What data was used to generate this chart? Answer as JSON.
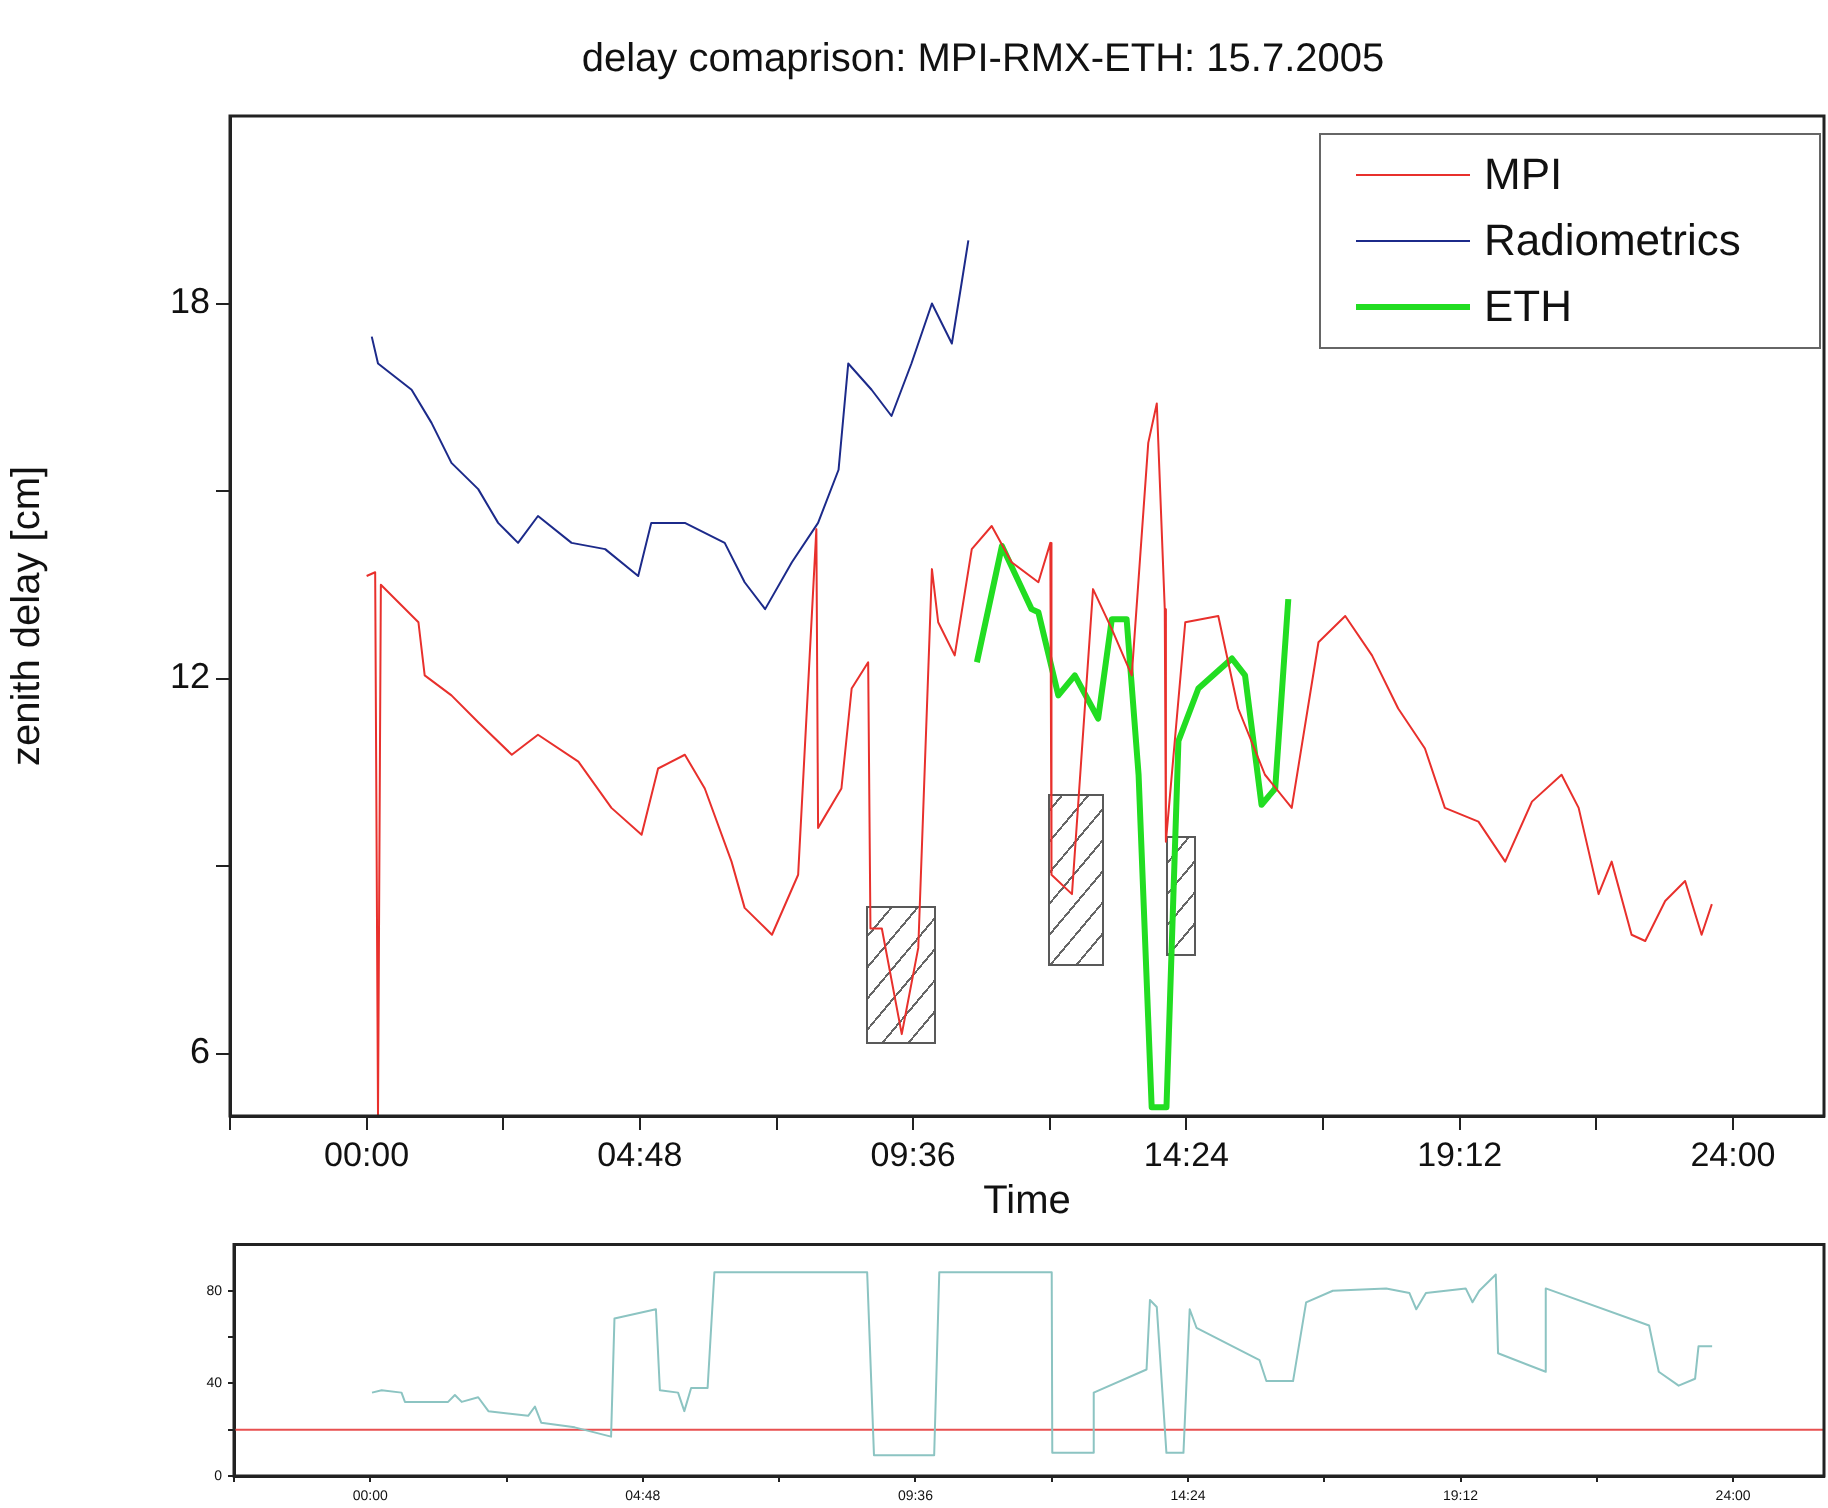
{
  "chart_data": [
    {
      "type": "line",
      "title": "delay comaprison: MPI-RMX-ETH: 15.7.2005",
      "xlabel": "Time",
      "ylabel": "zenith delay [cm]",
      "legend": "top right",
      "xlim": [
        -2.4,
        25.6
      ],
      "xticks": [
        {
          "value": -2.4,
          "label": null
        },
        {
          "value": 0,
          "label": "00:00"
        },
        {
          "value": 2.4,
          "label": null
        },
        {
          "value": 4.8,
          "label": "04:48"
        },
        {
          "value": 7.2,
          "label": null
        },
        {
          "value": 9.6,
          "label": "09:36"
        },
        {
          "value": 12,
          "label": null
        },
        {
          "value": 14.4,
          "label": "14:24"
        },
        {
          "value": 16.8,
          "label": null
        },
        {
          "value": 19.2,
          "label": "19:12"
        },
        {
          "value": 21.6,
          "label": null
        },
        {
          "value": 24,
          "label": "24:00"
        }
      ],
      "ylim": [
        5,
        21
      ],
      "yticks": [
        6,
        {
          "value": 9,
          "label": null
        },
        12,
        {
          "value": 15,
          "label": null
        },
        18
      ],
      "series": [
        {
          "name": "MPI",
          "color": "#e8302c",
          "x": [
            0.0,
            0.15,
            0.2,
            0.25,
            0.91,
            1.02,
            1.49,
            1.96,
            2.55,
            3.01,
            3.72,
            4.3,
            4.83,
            5.12,
            5.59,
            5.94,
            6.41,
            6.64,
            7.12,
            7.58,
            7.9,
            7.93,
            8.34,
            8.52,
            8.81,
            8.85,
            9.05,
            9.4,
            9.69,
            9.93,
            10.04,
            10.33,
            10.63,
            10.98,
            11.33,
            11.8,
            12.01,
            12.03,
            12.39,
            12.76,
            13.09,
            13.44,
            13.73,
            13.88,
            14.02,
            14.04,
            14.38,
            14.96,
            15.31,
            15.78,
            16.25,
            16.72,
            17.19,
            17.66,
            18.12,
            18.59,
            18.94,
            19.53,
            20.0,
            20.47,
            20.99,
            21.29,
            21.64,
            21.87,
            22.22,
            22.46,
            22.81,
            23.16,
            23.45,
            23.63
          ],
          "values": [
            13.64,
            13.7,
            5.0,
            13.5,
            12.9,
            12.05,
            11.73,
            11.3,
            10.78,
            11.1,
            10.67,
            9.93,
            9.5,
            10.56,
            10.78,
            10.24,
            9.07,
            8.33,
            7.9,
            8.86,
            14.39,
            9.61,
            10.24,
            11.84,
            12.26,
            8.0,
            8.0,
            6.31,
            7.69,
            13.75,
            12.9,
            12.37,
            14.07,
            14.44,
            13.86,
            13.54,
            14.17,
            8.86,
            8.55,
            13.43,
            12.79,
            12.05,
            15.77,
            16.4,
            13.11,
            9.39,
            12.9,
            13.0,
            11.52,
            10.46,
            9.93,
            12.58,
            13.0,
            12.37,
            11.52,
            10.88,
            9.93,
            9.71,
            9.07,
            10.03,
            10.46,
            9.93,
            8.55,
            9.07,
            7.9,
            7.8,
            8.44,
            8.76,
            7.9,
            8.39
          ]
        },
        {
          "name": "Radiometrics",
          "color": "#1c2a8a",
          "x": [
            0.09,
            0.2,
            0.79,
            1.14,
            1.49,
            1.96,
            2.31,
            2.66,
            3.01,
            3.6,
            4.19,
            4.77,
            5.0,
            5.59,
            6.29,
            6.64,
            7.0,
            7.47,
            7.93,
            8.29,
            8.46,
            8.87,
            9.22,
            9.57,
            9.93,
            10.28,
            10.45,
            10.57
          ],
          "values": [
            17.47,
            17.04,
            16.62,
            16.09,
            15.45,
            15.03,
            14.49,
            14.17,
            14.6,
            14.17,
            14.07,
            13.64,
            14.49,
            14.49,
            14.17,
            13.54,
            13.11,
            13.86,
            14.49,
            15.34,
            17.04,
            16.62,
            16.2,
            17.04,
            18.0,
            17.36,
            18.32,
            19.01
          ]
        },
        {
          "name": "ETH",
          "color": "#22dd22",
          "x": [
            10.72,
            11.16,
            11.68,
            11.8,
            12.15,
            12.44,
            12.85,
            13.09,
            13.35,
            13.56,
            13.79,
            14.05,
            14.26,
            14.61,
            15.2,
            15.43,
            15.72,
            15.96,
            16.19
          ],
          "values": [
            12.26,
            14.12,
            13.11,
            13.06,
            11.73,
            12.05,
            11.36,
            12.95,
            12.95,
            10.46,
            5.14,
            5.14,
            11.0,
            11.84,
            12.32,
            12.05,
            9.98,
            10.24,
            13.27
          ]
        }
      ]
    },
    {
      "type": "line",
      "xlim": [
        -2.4,
        25.6
      ],
      "xticks": [
        {
          "value": -2.4,
          "label": null
        },
        {
          "value": 0,
          "label": "00:00"
        },
        {
          "value": 2.4,
          "label": null
        },
        {
          "value": 4.8,
          "label": "04:48"
        },
        {
          "value": 7.2,
          "label": null
        },
        {
          "value": 9.6,
          "label": "09:36"
        },
        {
          "value": 12,
          "label": null
        },
        {
          "value": 14.4,
          "label": "14:24"
        },
        {
          "value": 16.8,
          "label": null
        },
        {
          "value": 19.2,
          "label": "19:12"
        },
        {
          "value": 21.6,
          "label": null
        },
        {
          "value": 24,
          "label": "24:00"
        }
      ],
      "ylim": [
        0,
        100
      ],
      "yticks": [
        0,
        {
          "value": 20,
          "label": null
        },
        40,
        {
          "value": 60,
          "label": null
        },
        80
      ],
      "ref_lines": [
        {
          "axis": "y",
          "value": 20,
          "color": "#e85050"
        }
      ],
      "series": [
        {
          "color": "#8cc4c2",
          "x": [
            0.03,
            0.2,
            0.55,
            0.61,
            1.37,
            1.49,
            1.61,
            1.9,
            2.08,
            2.78,
            2.9,
            3.01,
            3.6,
            4.24,
            4.3,
            5.03,
            5.1,
            5.42,
            5.53,
            5.65,
            5.94,
            6.06,
            8.75,
            8.87,
            9.93,
            10.02,
            12.0,
            12.01,
            12.74,
            12.74,
            13.67,
            13.73,
            13.85,
            14.02,
            14.32,
            14.43,
            14.55,
            15.66,
            15.78,
            16.25,
            16.48,
            16.95,
            17.89,
            18.3,
            18.42,
            18.59,
            19.29,
            19.41,
            19.53,
            19.82,
            19.86,
            20.7,
            20.7,
            22.52,
            22.69,
            23.04,
            23.33,
            23.39,
            23.63
          ],
          "values": [
            36,
            37,
            36,
            32,
            32,
            35,
            32,
            34,
            28,
            26,
            30,
            23,
            21,
            17,
            68,
            72,
            37,
            36,
            28,
            38,
            38,
            88,
            88,
            9,
            9,
            88,
            88,
            10,
            10,
            36,
            46,
            76,
            73,
            10,
            10,
            72,
            64,
            50,
            41,
            41,
            75,
            80,
            81,
            79,
            72,
            79,
            81,
            75,
            80,
            87,
            53,
            45,
            81,
            65,
            45,
            39,
            42,
            56,
            56
          ]
        }
      ]
    }
  ]
}
